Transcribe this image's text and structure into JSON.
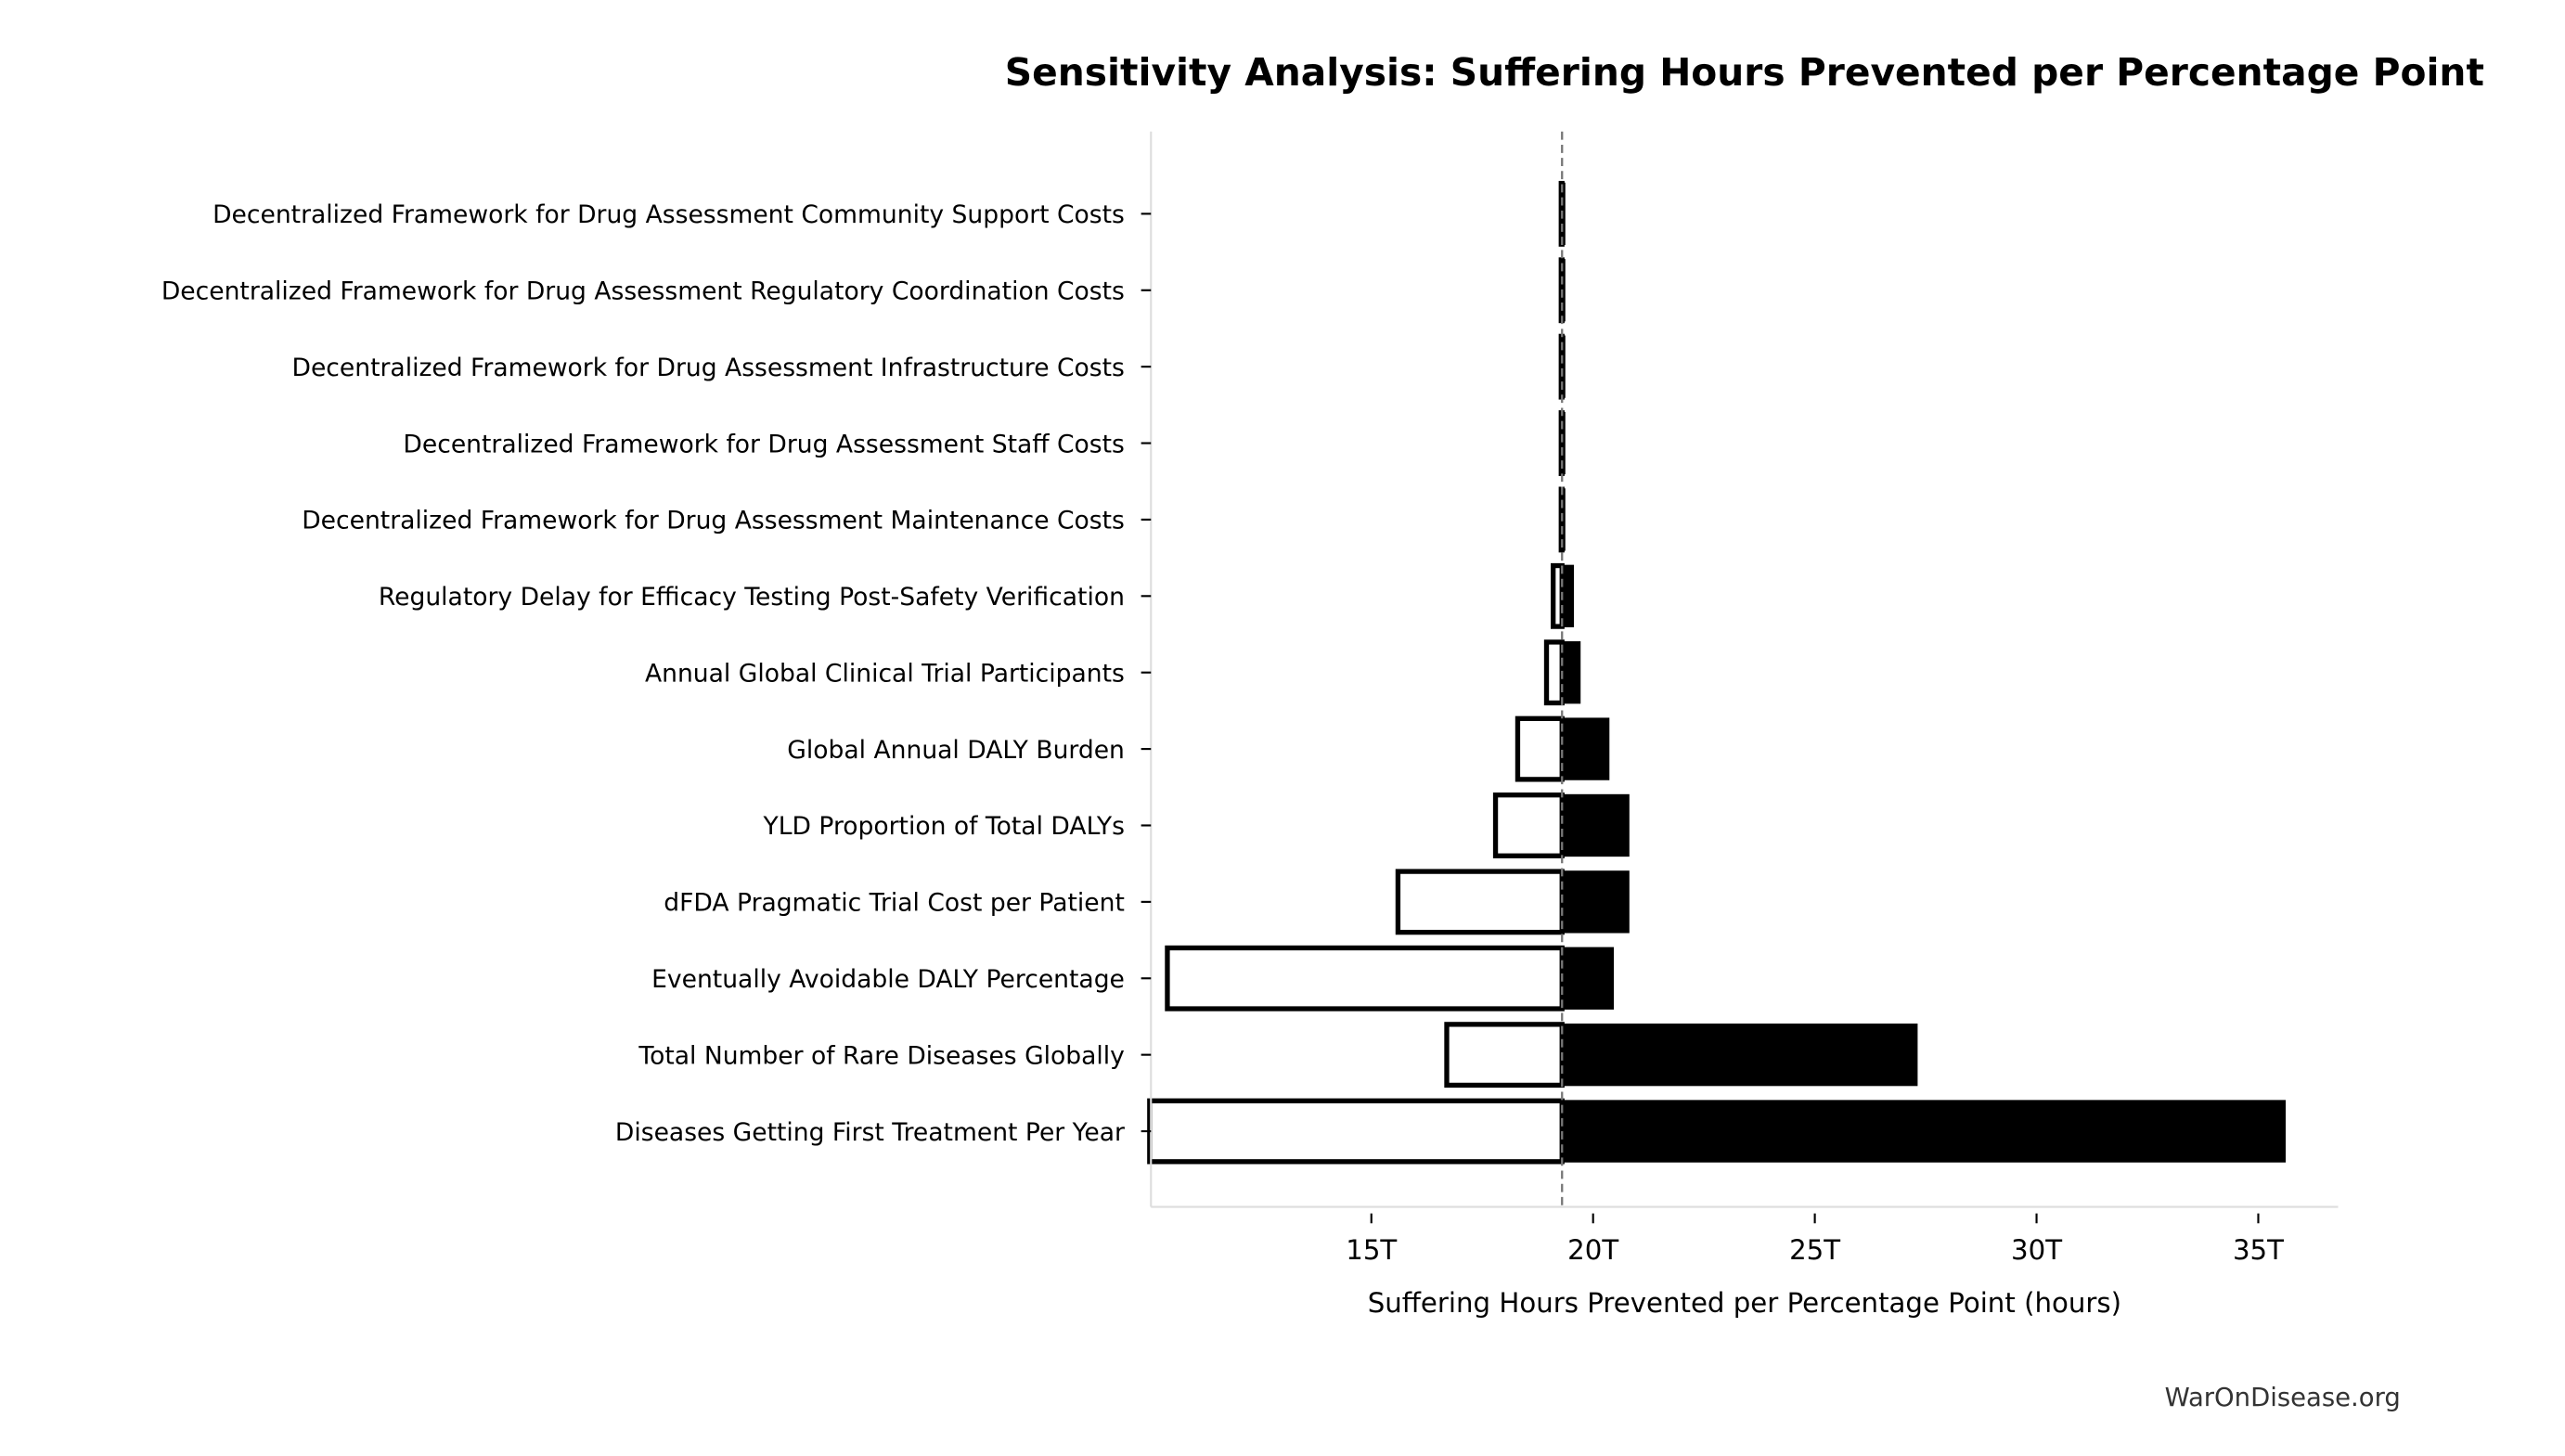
{
  "chart_data": {
    "type": "bar",
    "orientation": "horizontal-tornado",
    "title": "Sensitivity Analysis: Suffering Hours Prevented per Percentage Point",
    "xlabel": "Suffering Hours Prevented per Percentage Point (hours)",
    "ylabel": "",
    "xlim": [
      10.03,
      36.8
    ],
    "x_unit_suffix": "T",
    "baseline": 19.3,
    "baseline_style": "dashed gray",
    "xticks": [
      15,
      20,
      25,
      30,
      35
    ],
    "xtick_labels": [
      "15T",
      "20T",
      "25T",
      "30T",
      "35T"
    ],
    "grid": false,
    "low_color": "#ffffff",
    "high_color": "#000000",
    "categories": [
      "Decentralized Framework for Drug Assessment Community Support Costs",
      "Decentralized Framework for Drug Assessment Regulatory Coordination Costs",
      "Decentralized Framework for Drug Assessment Infrastructure Costs",
      "Decentralized Framework for Drug Assessment Staff Costs",
      "Decentralized Framework for Drug Assessment Maintenance Costs",
      "Regulatory Delay for Efficacy Testing Post-Safety Verification",
      "Annual Global Clinical Trial Participants",
      "Global Annual DALY Burden",
      "YLD Proportion of Total DALYs",
      "dFDA Pragmatic Trial Cost per Patient",
      "Eventually Avoidable DALY Percentage",
      "Total Number of Rare Diseases Globally",
      "Diseases Getting First Treatment Per Year"
    ],
    "series": [
      {
        "values": [
          19.28,
          19.28,
          19.28,
          19.28,
          19.28,
          19.1,
          18.95,
          18.3,
          17.8,
          15.6,
          10.4,
          16.7,
          10.0
        ]
      },
      {
        "values": [
          19.33,
          19.33,
          19.33,
          19.33,
          19.33,
          19.55,
          19.7,
          20.35,
          20.8,
          20.8,
          20.45,
          27.3,
          35.6
        ]
      }
    ]
  },
  "footer": {
    "watermark": "WarOnDisease.org"
  }
}
